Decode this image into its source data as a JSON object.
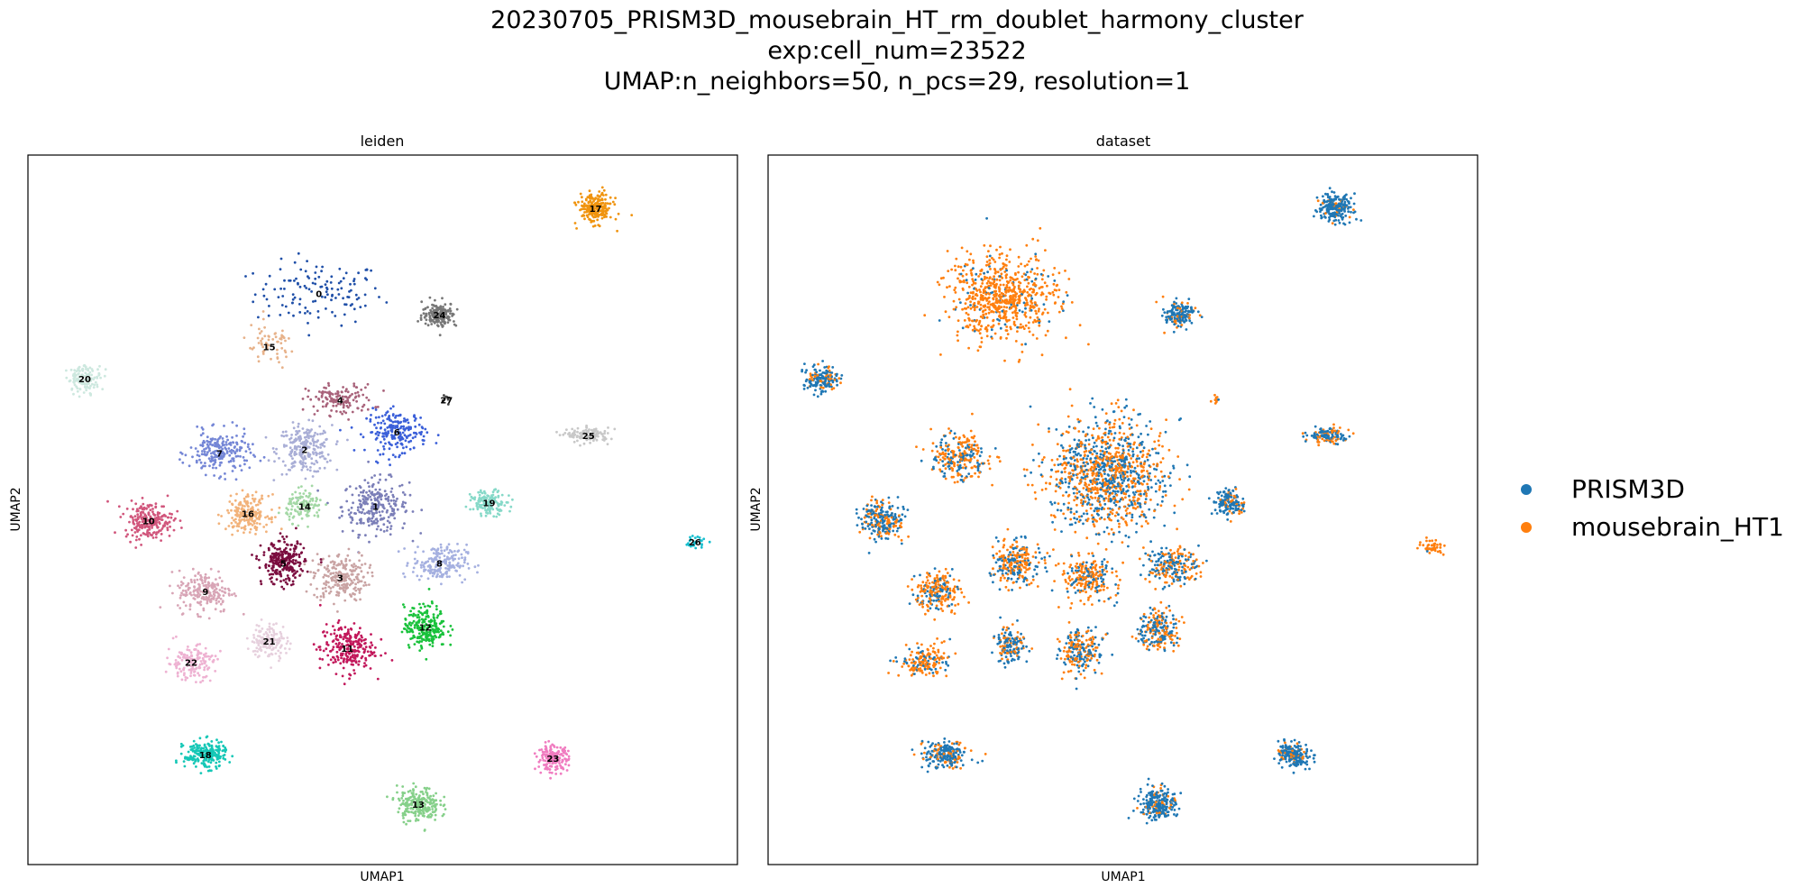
{
  "title": {
    "line1": "20230705_PRISM3D_mousebrain_HT_rm_doublet_harmony_cluster",
    "line2": "exp:cell_num=23522",
    "line3": "UMAP:n_neighbors=50, n_pcs=29, resolution=1"
  },
  "chart_data": [
    {
      "type": "scatter",
      "title": "leiden",
      "xlabel": "UMAP1",
      "ylabel": "UMAP2",
      "grid": false,
      "xlim": [
        0,
        100
      ],
      "ylim": [
        0,
        100
      ],
      "legend": "on-data",
      "clusters": [
        {
          "label": "0",
          "x": 41,
          "y": 80.5,
          "sx": 9,
          "sy": 4.5,
          "n": 130,
          "color": "#1f4fa8",
          "sparse": true
        },
        {
          "label": "1",
          "x": 49,
          "y": 50.5,
          "sx": 5.5,
          "sy": 4.5,
          "n": 260,
          "color": "#7b7fb8"
        },
        {
          "label": "2",
          "x": 39,
          "y": 58.5,
          "sx": 4.5,
          "sy": 4,
          "n": 230,
          "color": "#a9aed6"
        },
        {
          "label": "3",
          "x": 44,
          "y": 40.5,
          "sx": 4.5,
          "sy": 4,
          "n": 230,
          "color": "#c9a3a3"
        },
        {
          "label": "4",
          "x": 44,
          "y": 65.5,
          "sx": 5.5,
          "sy": 2.5,
          "n": 130,
          "color": "#a8627a"
        },
        {
          "label": "6",
          "x": 52,
          "y": 61,
          "sx": 5,
          "sy": 3.5,
          "n": 200,
          "color": "#3a5fd9"
        },
        {
          "label": "7",
          "x": 27,
          "y": 58,
          "sx": 5,
          "sy": 3.5,
          "n": 220,
          "color": "#7486d6"
        },
        {
          "label": "8",
          "x": 58,
          "y": 42.5,
          "sx": 4.5,
          "sy": 3,
          "n": 200,
          "color": "#a5b0e0"
        },
        {
          "label": "9",
          "x": 25,
          "y": 38.5,
          "sx": 4.5,
          "sy": 3.5,
          "n": 200,
          "color": "#d8a5b6"
        },
        {
          "label": "10",
          "x": 17,
          "y": 48.5,
          "sx": 4,
          "sy": 3,
          "n": 230,
          "color": "#d1567c"
        },
        {
          "label": "11",
          "x": 45,
          "y": 30.5,
          "sx": 4.5,
          "sy": 4,
          "n": 240,
          "color": "#c2185b"
        },
        {
          "label": "12",
          "x": 56,
          "y": 33.5,
          "sx": 3.5,
          "sy": 3.5,
          "n": 230,
          "color": "#19c23b"
        },
        {
          "label": "13",
          "x": 55,
          "y": 8.5,
          "sx": 3.5,
          "sy": 2.8,
          "n": 230,
          "color": "#86d08a"
        },
        {
          "label": "14",
          "x": 39,
          "y": 50.5,
          "sx": 3,
          "sy": 2.5,
          "n": 120,
          "color": "#a3d8a5"
        },
        {
          "label": "15",
          "x": 34,
          "y": 73,
          "sx": 4,
          "sy": 3,
          "n": 60,
          "color": "#e7b28a",
          "sparse": true
        },
        {
          "label": "16",
          "x": 31,
          "y": 49.5,
          "sx": 3.5,
          "sy": 3,
          "n": 200,
          "color": "#f2b27a"
        },
        {
          "label": "17",
          "x": 80,
          "y": 92.5,
          "sx": 2.8,
          "sy": 2.5,
          "n": 220,
          "color": "#f0940f"
        },
        {
          "label": "18",
          "x": 25,
          "y": 15.5,
          "sx": 3.5,
          "sy": 2.2,
          "n": 220,
          "color": "#15c7b6"
        },
        {
          "label": "19",
          "x": 65,
          "y": 51,
          "sx": 3,
          "sy": 2,
          "n": 140,
          "color": "#86d9c8"
        },
        {
          "label": "20",
          "x": 8,
          "y": 68.5,
          "sx": 2.8,
          "sy": 2.2,
          "n": 130,
          "color": "#cde8df"
        },
        {
          "label": "21",
          "x": 34,
          "y": 31.5,
          "sx": 3,
          "sy": 3,
          "n": 150,
          "color": "#e6d0dd"
        },
        {
          "label": "22",
          "x": 23,
          "y": 28.5,
          "sx": 4,
          "sy": 2.8,
          "n": 160,
          "color": "#eeb2d2"
        },
        {
          "label": "23",
          "x": 74,
          "y": 15,
          "sx": 2.5,
          "sy": 2,
          "n": 180,
          "color": "#f07cc0"
        },
        {
          "label": "24",
          "x": 58,
          "y": 77.5,
          "sx": 2.8,
          "sy": 2,
          "n": 170,
          "color": "#777777"
        },
        {
          "label": "25",
          "x": 79,
          "y": 60.5,
          "sx": 3.5,
          "sy": 1.2,
          "n": 130,
          "color": "#c8c8c8"
        },
        {
          "label": "26",
          "x": 94,
          "y": 45.5,
          "sx": 1.8,
          "sy": 1.2,
          "n": 30,
          "color": "#17bfcf"
        },
        {
          "label": "27",
          "x": 59,
          "y": 65.5,
          "sx": 0.8,
          "sy": 0.8,
          "n": 10,
          "color": "#444444"
        },
        {
          "label": "5",
          "x": 36,
          "y": 42.5,
          "sx": 3.5,
          "sy": 3.5,
          "n": 260,
          "color": "#7b0d3f"
        }
      ]
    },
    {
      "type": "scatter",
      "title": "dataset",
      "xlabel": "UMAP1",
      "ylabel": "UMAP2",
      "grid": false,
      "xlim": [
        0,
        100
      ],
      "ylim": [
        0,
        100
      ],
      "legend": "right",
      "series": [
        {
          "name": "PRISM3D",
          "color": "#1f77b4"
        },
        {
          "name": "mousebrain_HT1",
          "color": "#ff7f0e"
        }
      ],
      "clusters": [
        {
          "x": 33,
          "y": 80,
          "sx": 8.5,
          "sy": 6.5,
          "n": 700,
          "mix": 0.1
        },
        {
          "x": 48,
          "y": 55,
          "sx": 9,
          "sy": 8.5,
          "n": 1100,
          "mix": 0.45
        },
        {
          "x": 27,
          "y": 57.5,
          "sx": 4.5,
          "sy": 3.5,
          "n": 260,
          "mix": 0.45
        },
        {
          "x": 16,
          "y": 48.5,
          "sx": 3.5,
          "sy": 3,
          "n": 250,
          "mix": 0.65
        },
        {
          "x": 24,
          "y": 38.5,
          "sx": 3.5,
          "sy": 3,
          "n": 220,
          "mix": 0.3
        },
        {
          "x": 35,
          "y": 42.5,
          "sx": 3.5,
          "sy": 3.5,
          "n": 260,
          "mix": 0.4
        },
        {
          "x": 45,
          "y": 40.5,
          "sx": 4,
          "sy": 3.5,
          "n": 240,
          "mix": 0.3
        },
        {
          "x": 57,
          "y": 42,
          "sx": 4,
          "sy": 3,
          "n": 220,
          "mix": 0.5
        },
        {
          "x": 55,
          "y": 33,
          "sx": 3,
          "sy": 3,
          "n": 220,
          "mix": 0.5
        },
        {
          "x": 44,
          "y": 30,
          "sx": 3.5,
          "sy": 3.5,
          "n": 220,
          "mix": 0.45
        },
        {
          "x": 34,
          "y": 31,
          "sx": 2.5,
          "sy": 3,
          "n": 150,
          "mix": 0.6
        },
        {
          "x": 22,
          "y": 28.5,
          "sx": 4,
          "sy": 2.5,
          "n": 170,
          "mix": 0.3
        },
        {
          "x": 25,
          "y": 15.5,
          "sx": 3.5,
          "sy": 2,
          "n": 220,
          "mix": 0.7
        },
        {
          "x": 55,
          "y": 8.5,
          "sx": 3,
          "sy": 2.5,
          "n": 230,
          "mix": 0.85
        },
        {
          "x": 74,
          "y": 15.5,
          "sx": 2.5,
          "sy": 2,
          "n": 200,
          "mix": 0.85
        },
        {
          "x": 80,
          "y": 92.5,
          "sx": 2.5,
          "sy": 2.2,
          "n": 220,
          "mix": 0.9
        },
        {
          "x": 58,
          "y": 77.5,
          "sx": 2.5,
          "sy": 2,
          "n": 170,
          "mix": 0.8
        },
        {
          "x": 7.5,
          "y": 68.5,
          "sx": 2.5,
          "sy": 2,
          "n": 170,
          "mix": 0.85
        },
        {
          "x": 79,
          "y": 60.5,
          "sx": 3.5,
          "sy": 1.2,
          "n": 130,
          "mix": 0.65
        },
        {
          "x": 65,
          "y": 51,
          "sx": 2.5,
          "sy": 2,
          "n": 150,
          "mix": 0.75
        },
        {
          "x": 93.5,
          "y": 45,
          "sx": 2,
          "sy": 1,
          "n": 45,
          "mix": 0.05
        },
        {
          "x": 63,
          "y": 65.5,
          "sx": 0.6,
          "sy": 0.6,
          "n": 10,
          "mix": 0.1
        }
      ]
    }
  ]
}
